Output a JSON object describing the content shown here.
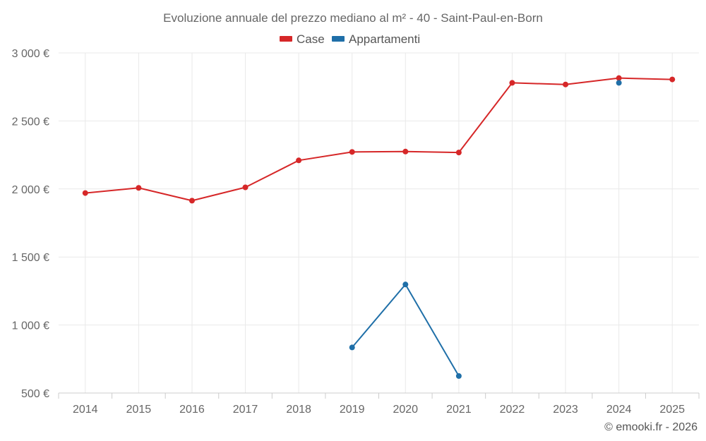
{
  "chart_data": {
    "type": "line",
    "title": "Evoluzione annuale del prezzo mediano al m² - 40 - Saint-Paul-en-Born",
    "categories": [
      "2014",
      "2015",
      "2016",
      "2017",
      "2018",
      "2019",
      "2020",
      "2021",
      "2022",
      "2023",
      "2024",
      "2025"
    ],
    "ylim": [
      500,
      3000
    ],
    "yticks": [
      500,
      1000,
      1500,
      2000,
      2500,
      3000
    ],
    "ytick_labels": [
      "500 €",
      "1 000 €",
      "1 500 €",
      "2 000 €",
      "2 500 €",
      "3 000 €"
    ],
    "xlabel": "",
    "ylabel": "",
    "grid": true,
    "legend_position": "top-center",
    "series": [
      {
        "name": "Case",
        "color": "#d62728",
        "values": [
          1970,
          2008,
          1914,
          2012,
          2210,
          2272,
          2275,
          2268,
          2780,
          2768,
          2815,
          2805
        ]
      },
      {
        "name": "Appartamenti",
        "color": "#1f6fa8",
        "values": [
          null,
          null,
          null,
          null,
          null,
          835,
          1298,
          625,
          null,
          null,
          2780,
          null
        ]
      }
    ]
  },
  "credit": "© emooki.fr - 2026"
}
